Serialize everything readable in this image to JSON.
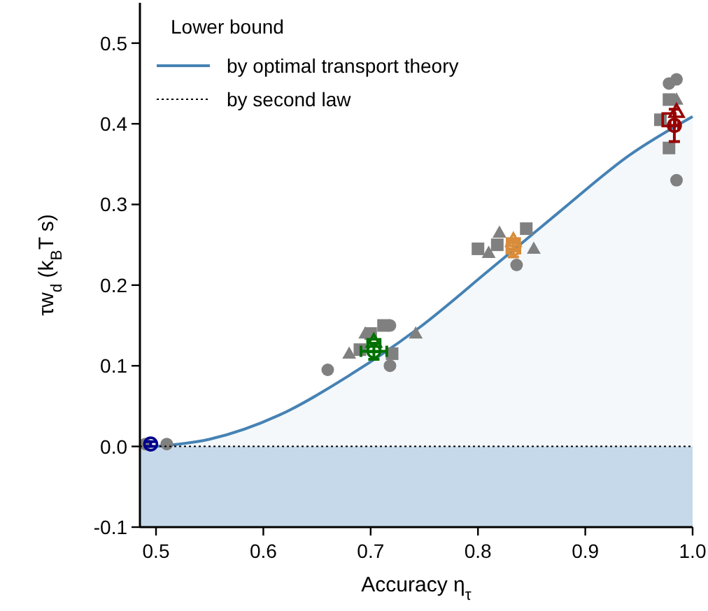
{
  "chart_data": {
    "type": "scatter",
    "xlabel": "Accuracy η$_{τ}$",
    "ylabel": "τw$_{d}$ (k$_{B}$T s)",
    "legend_title": "Lower bound",
    "legend": "top left",
    "grid": false,
    "xlim": [
      0.485,
      1.0
    ],
    "ylim": [
      -0.1,
      0.55
    ],
    "xticks": [
      0.5,
      0.6,
      0.7,
      0.8,
      0.9,
      {
        "value": 1,
        "label": "1.0"
      }
    ],
    "yticks": [
      -0.1,
      {
        "value": 0,
        "label": "0.0"
      },
      0.1,
      0.2,
      0.3,
      0.4,
      0.5
    ],
    "bands": [
      {
        "axis": "y",
        "from": -0.1,
        "to": 0,
        "color": "#c6d9ea"
      }
    ],
    "ref_lines": [
      {
        "axis": "y",
        "value": 0,
        "label": "by second law",
        "color": "#000000",
        "line_style": "dotted"
      }
    ],
    "series": [
      {
        "type": "area",
        "name": "by optimal transport theory",
        "color": "#4682b4",
        "x": [
          0.5,
          0.55,
          0.615,
          0.68,
          0.745,
          0.81,
          0.876,
          0.941,
          1.0
        ],
        "values": [
          0,
          0.009,
          0.039,
          0.088,
          0.147,
          0.218,
          0.291,
          0.361,
          0.409
        ]
      },
      {
        "color": "#808080",
        "marker": "circle",
        "x": [
          0.49,
          0.51,
          0.66,
          0.718,
          0.718,
          0.836,
          0.978,
          0.985,
          0.985
        ],
        "values": [
          0.003,
          0.003,
          0.095,
          0.15,
          0.1,
          0.225,
          0.45,
          0.455,
          0.33
        ]
      },
      {
        "color": "#808080",
        "marker": "square",
        "x": [
          0.69,
          0.7,
          0.712,
          0.72,
          0.8,
          0.818,
          0.845,
          0.97,
          0.978,
          0.978
        ],
        "values": [
          0.12,
          0.14,
          0.15,
          0.115,
          0.245,
          0.25,
          0.27,
          0.405,
          0.43,
          0.37
        ]
      },
      {
        "color": "#808080",
        "marker": "triangle",
        "x": [
          0.68,
          0.695,
          0.742,
          0.81,
          0.82,
          0.852,
          0.985
        ],
        "values": [
          0.115,
          0.14,
          0.14,
          0.24,
          0.265,
          0.245,
          0.43
        ]
      },
      {
        "marker": "square",
        "colors": [
          "#007000",
          "#d98c3a",
          "#990000"
        ],
        "x": [
          0.703,
          0.833,
          0.978
        ],
        "values": [
          0.125,
          0.25,
          0.405
        ]
      },
      {
        "marker": "circle",
        "colors": [
          "#00008b",
          "#007000",
          "#d98c3a",
          "#990000"
        ],
        "x": [
          0.495,
          0.703,
          0.833,
          0.983
        ],
        "values": [
          0.003,
          0.118,
          0.245,
          0.398
        ],
        "errors": [
          0.003,
          0.01,
          0.01,
          0.02
        ],
        "xerrors": [
          null,
          0.012,
          0.006,
          0.004
        ]
      },
      {
        "marker": "triangle",
        "colors": [
          "#007000",
          "#d98c3a",
          "#990000"
        ],
        "x": [
          0.703,
          0.833,
          0.985
        ],
        "values": [
          0.13,
          0.255,
          0.415
        ]
      }
    ]
  }
}
